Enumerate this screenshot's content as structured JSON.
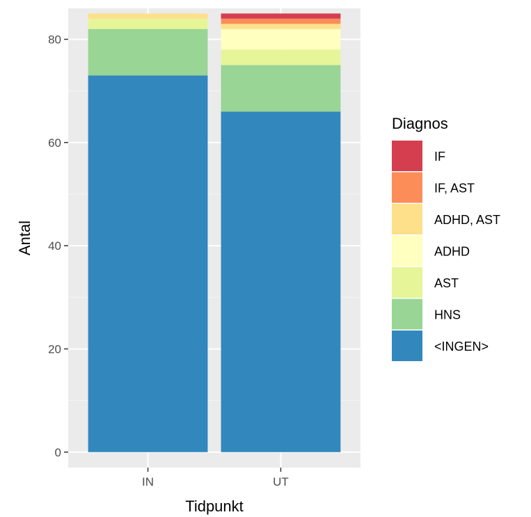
{
  "chart_data": {
    "type": "bar",
    "stacked": true,
    "xlabel": "Tidpunkt",
    "ylabel": "Antal",
    "categories": [
      "IN",
      "UT"
    ],
    "ylim": [
      -3,
      86
    ],
    "yticks": [
      0,
      20,
      40,
      60,
      80
    ],
    "grid": true,
    "legend": {
      "title": "Diagnos",
      "position": "right"
    },
    "series": [
      {
        "name": "<INGEN>",
        "color": "#3288bd",
        "values": [
          73,
          66
        ]
      },
      {
        "name": "HNS",
        "color": "#99d594",
        "values": [
          9,
          9
        ]
      },
      {
        "name": "AST",
        "color": "#e6f598",
        "values": [
          2,
          3
        ]
      },
      {
        "name": "ADHD",
        "color": "#ffffbf",
        "values": [
          0,
          4
        ]
      },
      {
        "name": "ADHD, AST",
        "color": "#fee08b",
        "values": [
          1,
          1
        ]
      },
      {
        "name": "IF, AST",
        "color": "#fc8d59",
        "values": [
          0,
          1
        ]
      },
      {
        "name": "IF",
        "color": "#d53e4f",
        "values": [
          0,
          1
        ]
      }
    ],
    "legend_order": [
      "IF",
      "IF, AST",
      "ADHD, AST",
      "ADHD",
      "AST",
      "HNS",
      "<INGEN>"
    ]
  }
}
